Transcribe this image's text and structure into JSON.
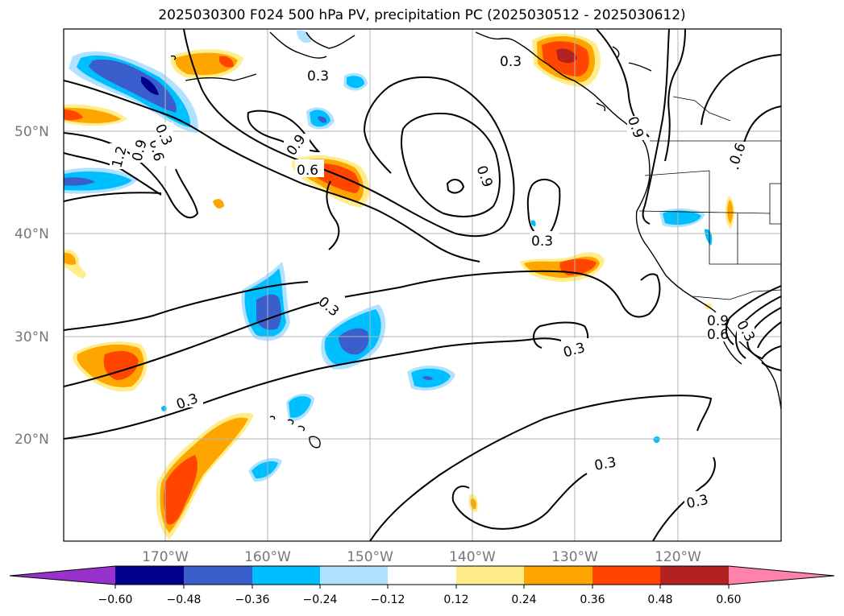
{
  "title": "2025030300 F024 500 hPa PV, precipitation PC (2025030512 - 2025030612)",
  "map": {
    "lat_labels": [
      "50°N",
      "40°N",
      "30°N",
      "20°N"
    ],
    "lon_labels": [
      "170°W",
      "160°W",
      "150°W",
      "140°W",
      "130°W",
      "120°W"
    ],
    "contour_labels": [
      "0.3",
      "0.3",
      "0.9",
      "0.6",
      "0.9",
      "0.3",
      "0.3",
      "0.3",
      "0.3",
      "0.3",
      "0.3",
      "1.2",
      "0.9",
      "0.6",
      "0.3",
      "0.9",
      "0.6",
      "0.9",
      "0.3",
      "0.6"
    ]
  },
  "colorbar": {
    "ticks": [
      "−0.60",
      "−0.48",
      "−0.36",
      "−0.24",
      "−0.12",
      "0.12",
      "0.24",
      "0.36",
      "0.48",
      "0.60"
    ],
    "colors": [
      "#9932cc",
      "#00008b",
      "#3a5fcd",
      "#00bfff",
      "#b0e2ff",
      "#ffffff",
      "#ffec8b",
      "#ffa500",
      "#ff4500",
      "#b22222",
      "#ff82ab"
    ]
  }
}
